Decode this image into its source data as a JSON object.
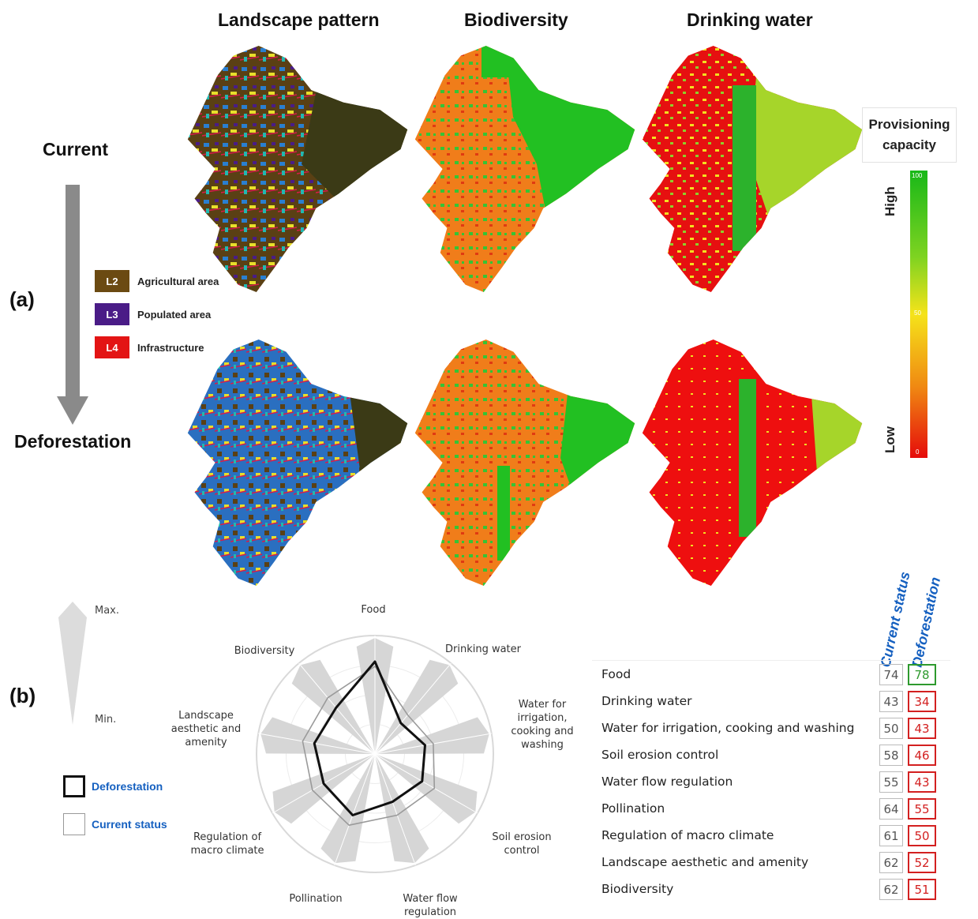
{
  "columns": [
    "Landscape pattern",
    "Biodiversity",
    "Drinking water"
  ],
  "rows": {
    "current": "Current",
    "deforestation": "Deforestation"
  },
  "panels": {
    "a": "(a)",
    "b": "(b)"
  },
  "landscape_legend": [
    {
      "code": "L2",
      "label": "Agricultural area",
      "color": "#6b4a12"
    },
    {
      "code": "L3",
      "label": "Populated area",
      "color": "#4a1c87"
    },
    {
      "code": "L4",
      "label": "Infrastructure",
      "color": "#e31414"
    }
  ],
  "provisioning_legend": {
    "title_line1": "Provisioning",
    "title_line2": "capacity",
    "high": "High",
    "low": "Low",
    "max_value": "100",
    "mid_value": "50",
    "min_value": "0",
    "colors": {
      "high": "#18b818",
      "mid": "#f5e31a",
      "low": "#e50b0b"
    }
  },
  "radar": {
    "max_label": "Max.",
    "min_label": "Min.",
    "legend": {
      "deforestation": "Deforestation",
      "current": "Current status"
    },
    "axes": [
      "Food",
      "Drinking water",
      "Water for irrigation, cooking and washing",
      "Soil erosion control",
      "Water flow regulation",
      "Pollination",
      "Regulation of macro climate",
      "Landscape aesthetic and amenity",
      "Biodiversity"
    ],
    "axis_labels": [
      "Food",
      "Drinking water",
      "Water for\nirrigation,\ncooking and\nwashing",
      "Soil erosion\ncontrol",
      "Water flow\nregulation",
      "Pollination",
      "Regulation of\nmacro climate",
      "Landscape\naesthetic and\namenity",
      "Biodiversity"
    ]
  },
  "table": {
    "col_current": "Current status",
    "col_deforestation": "Deforestation",
    "rows": [
      {
        "label": "Food",
        "current": "74",
        "deforestation": "78"
      },
      {
        "label": "Drinking water",
        "current": "43",
        "deforestation": "34"
      },
      {
        "label": "Water for irrigation, cooking and washing",
        "current": "50",
        "deforestation": "43"
      },
      {
        "label": "Soil erosion control",
        "current": "58",
        "deforestation": "46"
      },
      {
        "label": "Water flow regulation",
        "current": "55",
        "deforestation": "43"
      },
      {
        "label": "Pollination",
        "current": "64",
        "deforestation": "55"
      },
      {
        "label": "Regulation of macro climate",
        "current": "61",
        "deforestation": "50"
      },
      {
        "label": "Landscape aesthetic and amenity",
        "current": "62",
        "deforestation": "52"
      },
      {
        "label": "Biodiversity",
        "current": "62",
        "deforestation": "51"
      }
    ]
  },
  "chart_data": {
    "type": "radar",
    "categories": [
      "Food",
      "Drinking water",
      "Water for irrigation, cooking and washing",
      "Soil erosion control",
      "Water flow regulation",
      "Pollination",
      "Regulation of macro climate",
      "Landscape aesthetic and amenity",
      "Biodiversity"
    ],
    "series": [
      {
        "name": "Current status",
        "values": [
          74,
          43,
          50,
          58,
          55,
          64,
          61,
          62,
          62
        ]
      },
      {
        "name": "Deforestation",
        "values": [
          78,
          34,
          43,
          46,
          43,
          55,
          50,
          52,
          51
        ]
      }
    ],
    "range": [
      0,
      100
    ]
  }
}
